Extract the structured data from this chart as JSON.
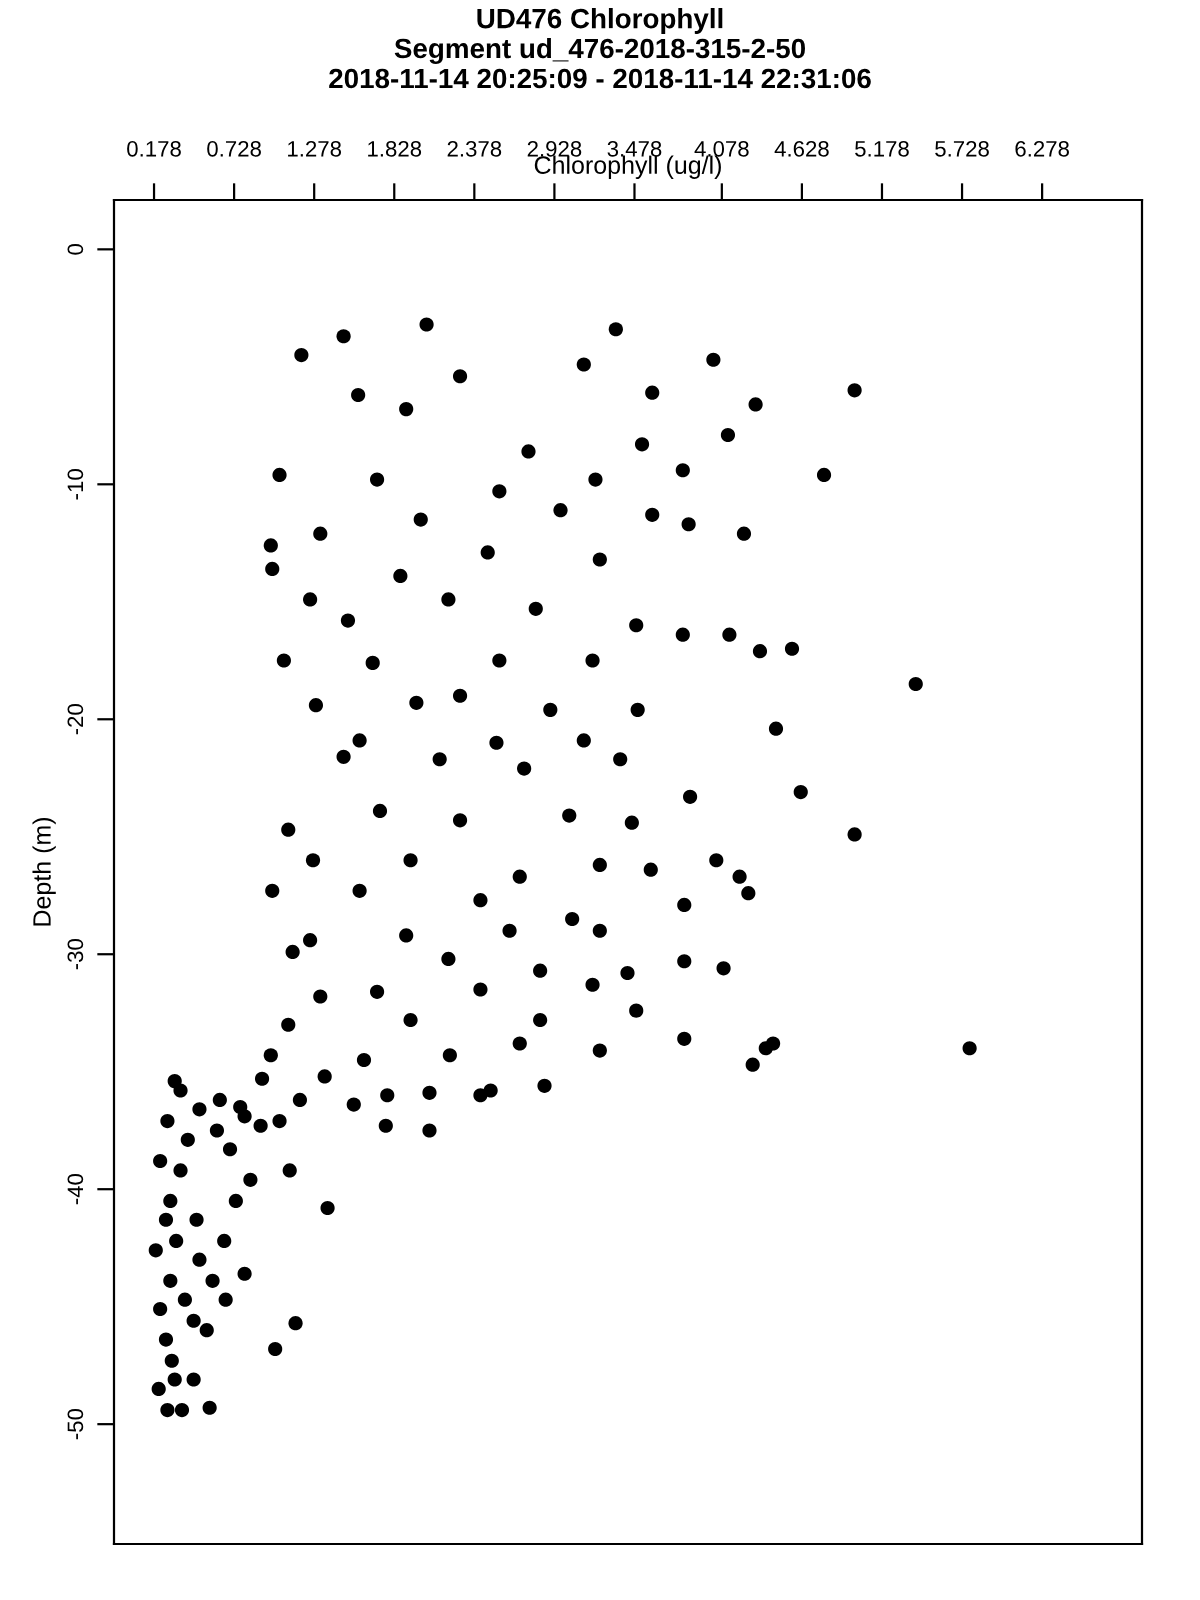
{
  "chart_data": {
    "type": "scatter",
    "title": "UD476 Chlorophyll\nSegment ud_476-2018-315-2-50\n2018-11-14 20:25:09 - 2018-11-14 22:31:06",
    "xlabel": "Chlorophyll (ug/l)",
    "ylabel": "Depth (m)",
    "xlim": [
      -0.097,
      6.964
    ],
    "ylim": [
      -55.1,
      2.1
    ],
    "xticks": [
      0.178,
      0.728,
      1.278,
      1.828,
      2.378,
      2.928,
      3.478,
      4.078,
      4.628,
      5.178,
      5.728,
      6.278
    ],
    "yticks": [
      -50,
      -40,
      -30,
      -20,
      -10,
      0
    ],
    "grid": false,
    "marker": "circle",
    "series": [
      {
        "color": "#000000",
        "x": [
          2.05,
          3.35,
          1.48,
          4.99,
          4.02,
          3.13,
          1.19,
          1.58,
          2.28,
          1.91,
          3.6,
          4.31,
          4.78,
          2.75,
          1.04,
          3.53,
          4.12,
          1.71,
          2.55,
          3.21,
          3.81,
          4.23,
          1.32,
          2.01,
          2.97,
          3.6,
          0.98,
          2.47,
          0.99,
          1.87,
          3.24,
          3.85,
          1.25,
          1.51,
          2.2,
          2.8,
          3.49,
          4.13,
          4.34,
          4.56,
          5.41,
          1.07,
          1.68,
          2.55,
          3.19,
          3.81,
          4.45,
          1.29,
          1.98,
          2.28,
          2.9,
          3.5,
          1.59,
          2.53,
          3.13,
          1.48,
          2.14,
          2.72,
          3.38,
          4.62,
          3.86,
          4.99,
          1.1,
          1.73,
          2.28,
          3.03,
          3.46,
          4.04,
          3.59,
          1.27,
          1.94,
          2.69,
          3.24,
          4.2,
          4.26,
          0.99,
          1.59,
          2.42,
          3.82,
          3.05,
          1.25,
          1.91,
          2.62,
          3.24,
          3.82,
          4.09,
          1.13,
          2.2,
          2.83,
          3.43,
          1.71,
          2.42,
          3.19,
          1.32,
          1.1,
          1.94,
          3.49,
          2.83,
          3.82,
          4.43,
          4.38,
          5.78,
          4.29,
          2.69,
          3.24,
          2.21,
          0.98,
          1.62,
          1.35,
          0.92,
          2.49,
          2.86,
          1.78,
          2.07,
          1.55,
          2.42,
          1.18,
          2.07,
          1.77,
          0.77,
          0.32,
          0.63,
          1.04,
          0.49,
          0.8,
          0.61,
          0.91,
          0.41,
          0.7,
          1.11,
          0.36,
          0.84,
          0.74,
          0.29,
          0.47,
          1.37,
          0.33,
          0.49,
          0.29,
          0.8,
          0.67,
          0.45,
          1.15,
          0.54,
          1.01,
          0.26,
          0.3,
          0.45,
          0.21,
          0.37,
          0.56,
          0.27,
          0.22,
          0.19,
          0.26,
          0.22,
          0.27,
          0.36,
          0.39,
          0.32,
          0.66,
          0.58
        ],
        "values": [
          -3.2,
          -3.4,
          -3.7,
          -6.0,
          -4.7,
          -4.9,
          -4.5,
          -6.2,
          -5.4,
          -6.8,
          -6.1,
          -6.6,
          -9.6,
          -8.6,
          -9.6,
          -8.3,
          -7.9,
          -9.8,
          -10.3,
          -9.8,
          -9.4,
          -12.1,
          -12.1,
          -11.5,
          -11.1,
          -11.3,
          -12.6,
          -12.9,
          -13.6,
          -13.9,
          -13.2,
          -11.7,
          -14.9,
          -15.8,
          -14.9,
          -15.3,
          -16.0,
          -16.4,
          -17.1,
          -17.0,
          -18.5,
          -17.5,
          -17.6,
          -17.5,
          -17.5,
          -16.4,
          -20.4,
          -19.4,
          -19.3,
          -19.0,
          -19.6,
          -19.6,
          -20.9,
          -21.0,
          -20.9,
          -21.6,
          -21.7,
          -22.1,
          -21.7,
          -23.1,
          -23.3,
          -24.9,
          -24.7,
          -23.9,
          -24.3,
          -24.1,
          -24.4,
          -26.0,
          -26.4,
          -26.0,
          -26.0,
          -26.7,
          -26.2,
          -26.7,
          -27.4,
          -27.3,
          -27.3,
          -27.7,
          -27.9,
          -28.5,
          -29.4,
          -29.2,
          -29.0,
          -29.0,
          -30.3,
          -30.6,
          -29.9,
          -30.2,
          -30.7,
          -30.8,
          -31.6,
          -31.5,
          -31.3,
          -31.8,
          -33.0,
          -32.8,
          -32.4,
          -32.8,
          -33.6,
          -33.8,
          -34.0,
          -34.0,
          -34.7,
          -33.8,
          -34.1,
          -34.3,
          -34.3,
          -34.5,
          -35.2,
          -35.3,
          -35.8,
          -35.6,
          -36.0,
          -35.9,
          -36.4,
          -36.0,
          -36.2,
          -37.5,
          -37.3,
          -36.5,
          -35.4,
          -36.2,
          -37.1,
          -36.6,
          -36.9,
          -37.5,
          -37.3,
          -37.9,
          -38.3,
          -39.2,
          -39.2,
          -39.6,
          -40.5,
          -40.5,
          -41.3,
          -40.8,
          -42.2,
          -43.0,
          -43.9,
          -43.6,
          -44.7,
          -45.6,
          -45.7,
          -46.0,
          -46.8,
          -46.4,
          -47.3,
          -48.1,
          -48.5,
          -49.4,
          -49.3,
          -49.4,
          -45.1,
          -42.6,
          -41.3,
          -38.8,
          -37.1,
          -35.8,
          -44.7,
          -48.1,
          -42.2,
          -43.9
        ]
      }
    ]
  }
}
